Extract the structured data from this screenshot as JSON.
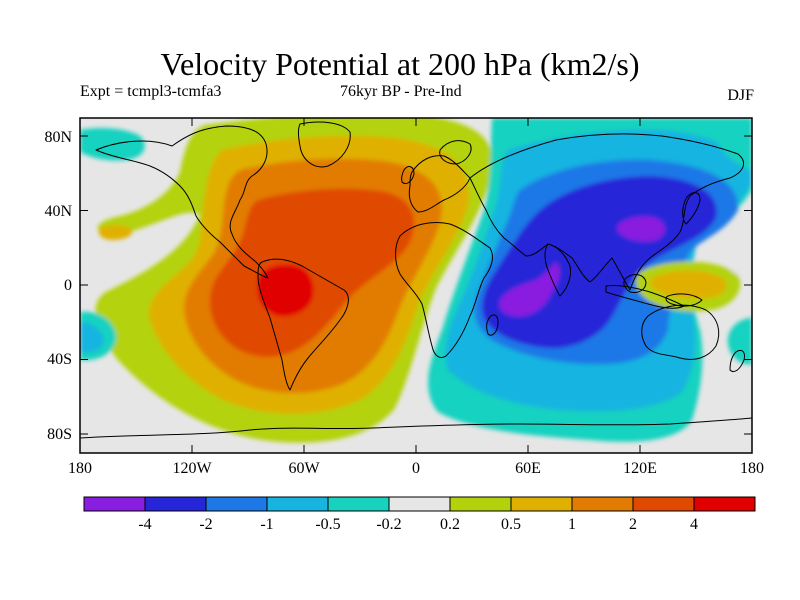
{
  "title": "Velocity Potential at 200 hPa (km2/s)",
  "subtitle": {
    "left": "Expt = tcmpl3-tcmfa3",
    "center": "76kyr BP - Pre-Ind",
    "right": "DJF"
  },
  "map": {
    "projection": "equirectangular",
    "lon_range": [
      -180,
      180
    ],
    "lat_range": [
      -90,
      90
    ],
    "y_tick_labels": [
      "80N",
      "40N",
      "0",
      "40S",
      "80S"
    ],
    "x_tick_labels": [
      "180",
      "120W",
      "60W",
      "0",
      "60E",
      "120E",
      "180"
    ]
  },
  "colorbar": {
    "colors": [
      "#8a1ee0",
      "#2626d8",
      "#1e78e6",
      "#18b4e0",
      "#18d2c0",
      "#e6e6e6",
      "#b4d20c",
      "#e0b000",
      "#e27c00",
      "#e04a00",
      "#e00000"
    ],
    "labels": [
      "-4",
      "-2",
      "-1",
      "-0.5",
      "-0.2",
      "0.2",
      "0.5",
      "1",
      "2",
      "4"
    ]
  }
}
